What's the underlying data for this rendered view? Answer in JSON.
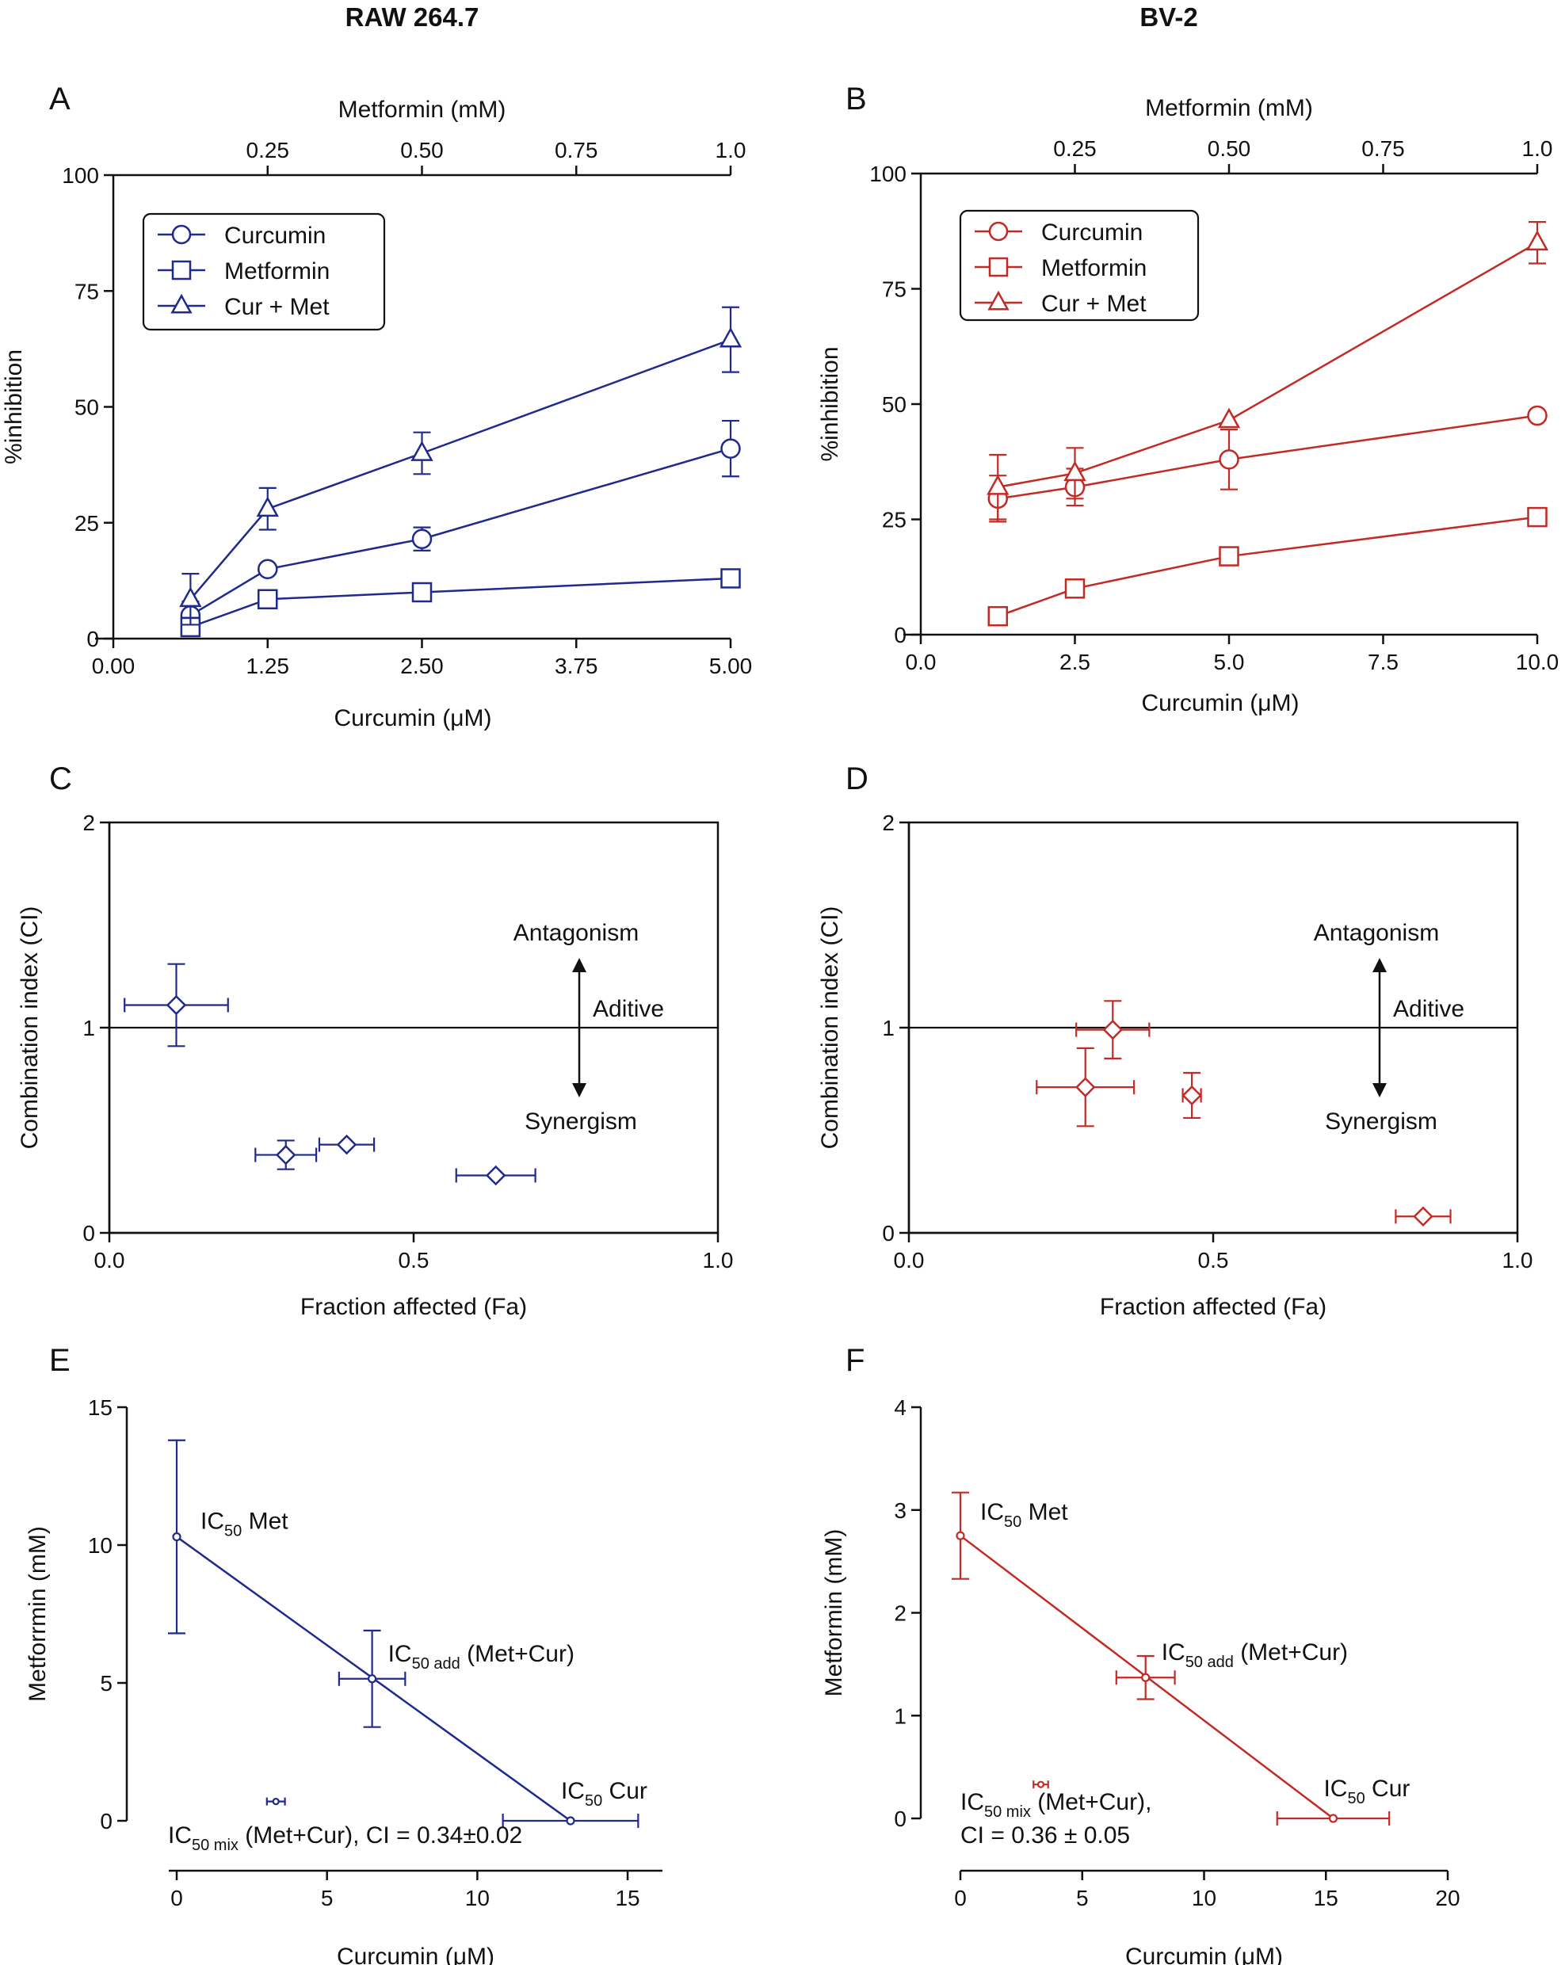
{
  "figure": {
    "columns": [
      {
        "id": "raw",
        "title": "RAW 264.7",
        "color": "#1f2a8c"
      },
      {
        "id": "bv2",
        "title": "BV-2",
        "color": "#c42a24"
      }
    ]
  },
  "chart_data": [
    {
      "panel": "A",
      "type": "line",
      "title": "RAW 264.7",
      "color": "#1f2a8c",
      "xlabel": "Curcumin (μM)",
      "x2label": "Metformin (mM)",
      "ylabel": "%inhibition",
      "xlim": [
        0,
        5
      ],
      "x2lim": [
        0,
        1
      ],
      "ylim": [
        0,
        100
      ],
      "xticks": [
        0,
        1.25,
        2.5,
        3.75,
        5
      ],
      "xtick_labels": [
        "0.00",
        "1.25",
        "2.50",
        "3.75",
        "5.00"
      ],
      "x2ticks": [
        0.25,
        0.5,
        0.75,
        1.0
      ],
      "x2tick_labels": [
        "0.25",
        "0.50",
        "0.75",
        "1.0"
      ],
      "yticks": [
        0,
        25,
        50,
        75,
        100
      ],
      "ytick_labels": [
        "0",
        "25",
        "50",
        "75",
        "100"
      ],
      "legend": "top-left",
      "series": [
        {
          "name": "Curcumin",
          "marker": "circle",
          "x": [
            0.625,
            1.25,
            2.5,
            5
          ],
          "y": [
            5,
            15,
            21.5,
            41
          ],
          "err": [
            3,
            0,
            2.5,
            6
          ]
        },
        {
          "name": "Metformin",
          "marker": "square",
          "x": [
            0.625,
            1.25,
            2.5,
            5
          ],
          "y": [
            2.5,
            8.5,
            10,
            13
          ],
          "err": [
            2,
            0,
            0,
            0
          ]
        },
        {
          "name": "Cur + Met",
          "marker": "triangle",
          "x": [
            0.625,
            1.25,
            2.5,
            5
          ],
          "y": [
            8.5,
            28,
            40,
            64.5
          ],
          "err": [
            5.5,
            4.5,
            4.5,
            7
          ]
        }
      ]
    },
    {
      "panel": "B",
      "type": "line",
      "title": "BV-2",
      "color": "#c42a24",
      "xlabel": "Curcumin (μM)",
      "x2label": "Metformin (mM)",
      "ylabel": "%inhibition",
      "xlim": [
        0,
        10
      ],
      "x2lim": [
        0,
        1
      ],
      "ylim": [
        0,
        100
      ],
      "xticks": [
        0,
        2.5,
        5,
        7.5,
        10
      ],
      "xtick_labels": [
        "0.0",
        "2.5",
        "5.0",
        "7.5",
        "10.0"
      ],
      "x2ticks": [
        0.25,
        0.5,
        0.75,
        1.0
      ],
      "x2tick_labels": [
        "0.25",
        "0.50",
        "0.75",
        "1.0"
      ],
      "yticks": [
        0,
        25,
        50,
        75,
        100
      ],
      "ytick_labels": [
        "0",
        "25",
        "50",
        "75",
        "100"
      ],
      "legend": "top-left",
      "series": [
        {
          "name": "Curcumin",
          "marker": "circle",
          "x": [
            1.25,
            2.5,
            5,
            10
          ],
          "y": [
            29.5,
            32,
            38,
            47.5
          ],
          "err": [
            5,
            4,
            6.5,
            0
          ]
        },
        {
          "name": "Metformin",
          "marker": "square",
          "x": [
            1.25,
            2.5,
            5,
            10
          ],
          "y": [
            4,
            10,
            17,
            25.5
          ],
          "err": [
            0,
            1.5,
            0,
            1
          ]
        },
        {
          "name": "Cur + Met",
          "marker": "triangle",
          "x": [
            1.25,
            2.5,
            5,
            10
          ],
          "y": [
            32,
            35,
            46.5,
            85
          ],
          "err": [
            7,
            5.5,
            0,
            4.5
          ]
        }
      ]
    },
    {
      "panel": "C",
      "type": "scatter",
      "color": "#1f2a8c",
      "xlabel": "Fraction affected (Fa)",
      "ylabel": "Combination index (CI)",
      "xlim": [
        0,
        1
      ],
      "ylim": [
        0,
        2
      ],
      "xticks": [
        0,
        0.5,
        1
      ],
      "xtick_labels": [
        "0.0",
        "0.5",
        "1.0"
      ],
      "yticks": [
        0,
        1,
        2
      ],
      "ytick_labels": [
        "0",
        "1",
        "2"
      ],
      "reference_line": 1,
      "annotations": {
        "top": "Antagonism",
        "middle": "Aditive",
        "bottom": "Synergism"
      },
      "points": [
        {
          "x": 0.11,
          "y": 1.11,
          "xerr": 0.085,
          "yerr": 0.2
        },
        {
          "x": 0.29,
          "y": 0.38,
          "xerr": 0.05,
          "yerr": 0.07
        },
        {
          "x": 0.39,
          "y": 0.43,
          "xerr": 0.045,
          "yerr": 0
        },
        {
          "x": 0.635,
          "y": 0.28,
          "xerr": 0.065,
          "yerr": 0
        }
      ]
    },
    {
      "panel": "D",
      "type": "scatter",
      "color": "#c42a24",
      "xlabel": "Fraction affected (Fa)",
      "ylabel": "Combination index (CI)",
      "xlim": [
        0,
        1
      ],
      "ylim": [
        0,
        2
      ],
      "xticks": [
        0,
        0.5,
        1
      ],
      "xtick_labels": [
        "0.0",
        "0.5",
        "1.0"
      ],
      "yticks": [
        0,
        1,
        2
      ],
      "ytick_labels": [
        "0",
        "1",
        "2"
      ],
      "reference_line": 1,
      "annotations": {
        "top": "Antagonism",
        "middle": "Aditive",
        "bottom": "Synergism"
      },
      "points": [
        {
          "x": 0.335,
          "y": 0.99,
          "xerr": 0.06,
          "yerr": 0.14
        },
        {
          "x": 0.29,
          "y": 0.71,
          "xerr": 0.08,
          "yerr": 0.19
        },
        {
          "x": 0.465,
          "y": 0.67,
          "xerr": 0.015,
          "yerr": 0.11
        },
        {
          "x": 0.845,
          "y": 0.08,
          "xerr": 0.045,
          "yerr": 0
        }
      ]
    },
    {
      "panel": "E",
      "type": "scatter",
      "color": "#1f2a8c",
      "xlabel": "Curcumin (μM)",
      "ylabel": "Metforrmin (mM)",
      "xlim": [
        0,
        16
      ],
      "ylim": [
        0,
        15
      ],
      "xticks": [
        0,
        5,
        10,
        15
      ],
      "xtick_labels": [
        "0",
        "5",
        "10",
        "15"
      ],
      "yticks": [
        0,
        5,
        10,
        15
      ],
      "ytick_labels": [
        "0",
        "5",
        "10",
        "15"
      ],
      "isobole": [
        [
          0,
          10.3
        ],
        [
          13.1,
          0
        ]
      ],
      "points": [
        {
          "label": "IC50 Met",
          "x": 0,
          "y": 10.3,
          "xerr": 0,
          "yerr": 3.5
        },
        {
          "label": "IC50 add (Met+Cur)",
          "x": 6.5,
          "y": 5.15,
          "xerr": 1.1,
          "yerr": 1.75
        },
        {
          "label": "IC50 Cur",
          "x": 13.1,
          "y": 0,
          "xerr": 2.25,
          "yerr": 0
        },
        {
          "label": "IC50 mix (Met+Cur)",
          "x": 3.3,
          "y": 0.7,
          "xerr": 0.3,
          "yerr": 0
        }
      ],
      "annotation_text": {
        "ic": "IC",
        "sub_50": "50",
        "sub_add": "50 add",
        "sub_mix": "50 mix",
        "met": " Met",
        "met_cur": " (Met+Cur)",
        "cur": " Cur",
        "ci_text": " (Met+Cur), CI = 0.34±0.02"
      }
    },
    {
      "panel": "F",
      "type": "scatter",
      "color": "#c42a24",
      "xlabel": "Curcumin (μM)",
      "ylabel": "Metformin (mM)",
      "xlim": [
        0,
        20
      ],
      "ylim": [
        0,
        4
      ],
      "xticks": [
        0,
        5,
        10,
        15,
        20
      ],
      "xtick_labels": [
        "0",
        "5",
        "10",
        "15",
        "20"
      ],
      "yticks": [
        0,
        1,
        2,
        3,
        4
      ],
      "ytick_labels": [
        "0",
        "1",
        "2",
        "3",
        "4"
      ],
      "isobole": [
        [
          0,
          2.75
        ],
        [
          15.3,
          0
        ]
      ],
      "points": [
        {
          "label": "IC50 Met",
          "x": 0,
          "y": 2.75,
          "xerr": 0,
          "yerr": 0.42
        },
        {
          "label": "IC50 add (Met+Cur)",
          "x": 7.6,
          "y": 1.37,
          "xerr": 1.2,
          "yerr": 0.21
        },
        {
          "label": "IC50 Cur",
          "x": 15.3,
          "y": 0,
          "xerr": 2.3,
          "yerr": 0
        },
        {
          "label": "IC50 mix (Met+Cur)",
          "x": 3.3,
          "y": 0.33,
          "xerr": 0.3,
          "yerr": 0
        }
      ],
      "annotation_text": {
        "ic": "IC",
        "sub_50": "50",
        "sub_add": "50 add",
        "sub_mix": "50 mix",
        "met": " Met",
        "met_cur": " (Met+Cur)",
        "cur": " Cur",
        "mix_text": " (Met+Cur),",
        "ci_text": "CI = 0.36 ± 0.05"
      }
    }
  ]
}
